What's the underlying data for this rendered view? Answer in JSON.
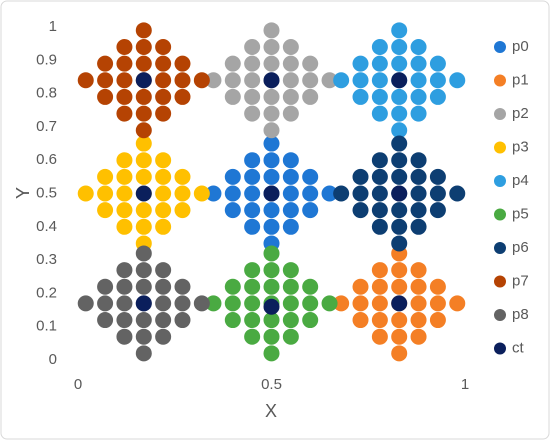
{
  "chart_data": {
    "type": "scatter",
    "x_label": "X",
    "y_label": "Y",
    "xlim": [
      0,
      1
    ],
    "ylim": [
      0,
      1
    ],
    "xticks": [
      0,
      0.5,
      1
    ],
    "yticks": [
      0,
      0.1,
      0.2,
      0.3,
      0.4,
      0.5,
      0.6,
      0.7,
      0.8,
      0.9,
      1
    ],
    "grid": false,
    "legend": "right",
    "series": [
      {
        "name": "p0",
        "color": "#1f77d4",
        "x": [
          0.5,
          0.45,
          0.5,
          0.55,
          0.4,
          0.45,
          0.5,
          0.55,
          0.6,
          0.35,
          0.4,
          0.45,
          0.5,
          0.55,
          0.6,
          0.65,
          0.4,
          0.45,
          0.5,
          0.55,
          0.6,
          0.45,
          0.5,
          0.55,
          0.5
        ],
        "values": [
          0.65,
          0.6,
          0.6,
          0.6,
          0.55,
          0.55,
          0.55,
          0.55,
          0.55,
          0.5,
          0.5,
          0.5,
          0.5,
          0.5,
          0.5,
          0.5,
          0.45,
          0.45,
          0.45,
          0.45,
          0.45,
          0.4,
          0.4,
          0.4,
          0.35
        ]
      },
      {
        "name": "p1",
        "color": "#f47f25",
        "x": [
          0.83,
          0.78,
          0.83,
          0.88,
          0.73,
          0.78,
          0.83,
          0.88,
          0.93,
          0.68,
          0.73,
          0.78,
          0.83,
          0.88,
          0.93,
          0.98,
          0.73,
          0.78,
          0.83,
          0.88,
          0.93,
          0.78,
          0.83,
          0.88,
          0.83
        ],
        "values": [
          0.32,
          0.27,
          0.27,
          0.27,
          0.22,
          0.22,
          0.22,
          0.22,
          0.22,
          0.17,
          0.17,
          0.17,
          0.17,
          0.17,
          0.17,
          0.17,
          0.12,
          0.12,
          0.12,
          0.12,
          0.12,
          0.07,
          0.07,
          0.07,
          0.02
        ]
      },
      {
        "name": "p2",
        "color": "#a5a5a5",
        "x": [
          0.5,
          0.45,
          0.5,
          0.55,
          0.4,
          0.45,
          0.5,
          0.55,
          0.6,
          0.35,
          0.4,
          0.45,
          0.5,
          0.55,
          0.6,
          0.65,
          0.4,
          0.45,
          0.5,
          0.55,
          0.6,
          0.45,
          0.5,
          0.55,
          0.5
        ],
        "values": [
          0.99,
          0.94,
          0.94,
          0.94,
          0.89,
          0.89,
          0.89,
          0.89,
          0.89,
          0.84,
          0.84,
          0.84,
          0.84,
          0.84,
          0.84,
          0.84,
          0.79,
          0.79,
          0.79,
          0.79,
          0.79,
          0.74,
          0.74,
          0.74,
          0.69
        ]
      },
      {
        "name": "p3",
        "color": "#ffc000",
        "x": [
          0.17,
          0.12,
          0.17,
          0.22,
          0.07,
          0.12,
          0.17,
          0.22,
          0.27,
          0.02,
          0.07,
          0.12,
          0.17,
          0.22,
          0.27,
          0.32,
          0.07,
          0.12,
          0.17,
          0.22,
          0.27,
          0.12,
          0.17,
          0.22,
          0.17
        ],
        "values": [
          0.65,
          0.6,
          0.6,
          0.6,
          0.55,
          0.55,
          0.55,
          0.55,
          0.55,
          0.5,
          0.5,
          0.5,
          0.5,
          0.5,
          0.5,
          0.5,
          0.45,
          0.45,
          0.45,
          0.45,
          0.45,
          0.4,
          0.4,
          0.4,
          0.35
        ]
      },
      {
        "name": "p4",
        "color": "#2e9ee0",
        "x": [
          0.83,
          0.78,
          0.83,
          0.88,
          0.73,
          0.78,
          0.83,
          0.88,
          0.93,
          0.68,
          0.73,
          0.78,
          0.83,
          0.88,
          0.93,
          0.98,
          0.73,
          0.78,
          0.83,
          0.88,
          0.93,
          0.78,
          0.83,
          0.88,
          0.83
        ],
        "values": [
          0.99,
          0.94,
          0.94,
          0.94,
          0.89,
          0.89,
          0.89,
          0.89,
          0.89,
          0.84,
          0.84,
          0.84,
          0.84,
          0.84,
          0.84,
          0.84,
          0.79,
          0.79,
          0.79,
          0.79,
          0.79,
          0.74,
          0.74,
          0.74,
          0.69
        ]
      },
      {
        "name": "p5",
        "color": "#4aaa42",
        "x": [
          0.5,
          0.45,
          0.5,
          0.55,
          0.4,
          0.45,
          0.5,
          0.55,
          0.6,
          0.35,
          0.4,
          0.45,
          0.5,
          0.55,
          0.6,
          0.65,
          0.4,
          0.45,
          0.5,
          0.55,
          0.6,
          0.45,
          0.5,
          0.55,
          0.5
        ],
        "values": [
          0.32,
          0.27,
          0.27,
          0.27,
          0.22,
          0.22,
          0.22,
          0.22,
          0.22,
          0.17,
          0.17,
          0.17,
          0.17,
          0.17,
          0.17,
          0.17,
          0.12,
          0.12,
          0.12,
          0.12,
          0.12,
          0.07,
          0.07,
          0.07,
          0.02
        ]
      },
      {
        "name": "p6",
        "color": "#0d3e72",
        "x": [
          0.83,
          0.78,
          0.83,
          0.88,
          0.73,
          0.78,
          0.83,
          0.88,
          0.93,
          0.68,
          0.73,
          0.78,
          0.83,
          0.88,
          0.93,
          0.98,
          0.73,
          0.78,
          0.83,
          0.88,
          0.93,
          0.78,
          0.83,
          0.88,
          0.83
        ],
        "values": [
          0.65,
          0.6,
          0.6,
          0.6,
          0.55,
          0.55,
          0.55,
          0.55,
          0.55,
          0.5,
          0.5,
          0.5,
          0.5,
          0.5,
          0.5,
          0.5,
          0.45,
          0.45,
          0.45,
          0.45,
          0.45,
          0.4,
          0.4,
          0.4,
          0.35
        ]
      },
      {
        "name": "p7",
        "color": "#b54303",
        "x": [
          0.17,
          0.12,
          0.17,
          0.22,
          0.07,
          0.12,
          0.17,
          0.22,
          0.27,
          0.02,
          0.07,
          0.12,
          0.17,
          0.22,
          0.27,
          0.32,
          0.07,
          0.12,
          0.17,
          0.22,
          0.27,
          0.12,
          0.17,
          0.22,
          0.17
        ],
        "values": [
          0.99,
          0.94,
          0.94,
          0.94,
          0.89,
          0.89,
          0.89,
          0.89,
          0.89,
          0.84,
          0.84,
          0.84,
          0.84,
          0.84,
          0.84,
          0.84,
          0.79,
          0.79,
          0.79,
          0.79,
          0.79,
          0.74,
          0.74,
          0.74,
          0.69
        ]
      },
      {
        "name": "p8",
        "color": "#636363",
        "x": [
          0.17,
          0.12,
          0.17,
          0.22,
          0.07,
          0.12,
          0.17,
          0.22,
          0.27,
          0.02,
          0.07,
          0.12,
          0.17,
          0.22,
          0.27,
          0.32,
          0.07,
          0.12,
          0.17,
          0.22,
          0.27,
          0.12,
          0.17,
          0.22,
          0.17
        ],
        "values": [
          0.32,
          0.27,
          0.27,
          0.27,
          0.22,
          0.22,
          0.22,
          0.22,
          0.22,
          0.17,
          0.17,
          0.17,
          0.17,
          0.17,
          0.17,
          0.17,
          0.12,
          0.12,
          0.12,
          0.12,
          0.12,
          0.07,
          0.07,
          0.07,
          0.02
        ]
      },
      {
        "name": "ct",
        "color": "#0b1f5c",
        "x": [
          0.5,
          0.83,
          0.5,
          0.17,
          0.83,
          0.5,
          0.83,
          0.17,
          0.17
        ],
        "values": [
          0.5,
          0.17,
          0.84,
          0.5,
          0.84,
          0.16,
          0.5,
          0.84,
          0.17
        ]
      }
    ]
  }
}
